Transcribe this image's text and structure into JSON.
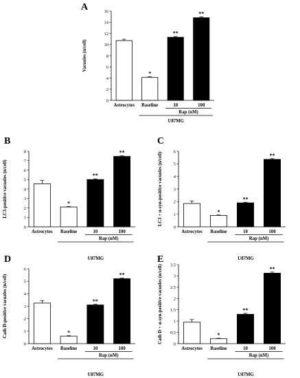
{
  "chart_data": [
    {
      "panel": "A",
      "type": "bar",
      "ylabel": "Vacuoles (n/cell)",
      "ylim": [
        0,
        16
      ],
      "yticks": [
        0,
        2,
        4,
        6,
        8,
        10,
        12,
        14,
        16
      ],
      "categories": [
        "Astrocytes",
        "Baseline",
        "10",
        "100"
      ],
      "values": [
        10.7,
        4.1,
        11.3,
        14.8
      ],
      "errors": [
        0.25,
        0.12,
        0.15,
        0.15
      ],
      "fill": [
        "white",
        "white",
        "black",
        "black"
      ],
      "significance": [
        "",
        "*",
        "**",
        "**"
      ],
      "treatment_label": "Rap (nM)",
      "group_label": "U87MG"
    },
    {
      "panel": "B",
      "type": "bar",
      "ylabel": "LC3-positive vacuoles (n/cell)",
      "ylim": [
        0,
        8
      ],
      "yticks": [
        0,
        1,
        2,
        3,
        4,
        5,
        6,
        7,
        8
      ],
      "categories": [
        "Astrocytes",
        "Baseline",
        "10",
        "100"
      ],
      "values": [
        4.55,
        2.1,
        5.0,
        7.45
      ],
      "errors": [
        0.35,
        0.06,
        0.08,
        0.06
      ],
      "fill": [
        "white",
        "white",
        "black",
        "black"
      ],
      "significance": [
        "",
        "*",
        "**",
        "**"
      ],
      "treatment_label": "Rap (nM)",
      "group_label": "U87MG"
    },
    {
      "panel": "C",
      "type": "bar",
      "ylabel": "LC3 + α-syn-positive vacuoles (n/cell)",
      "ylim": [
        0,
        6
      ],
      "yticks": [
        0,
        1,
        2,
        3,
        4,
        5,
        6
      ],
      "categories": [
        "Astrocytes",
        "Baseline",
        "10",
        "100"
      ],
      "values": [
        1.85,
        0.9,
        1.9,
        5.35
      ],
      "errors": [
        0.2,
        0.04,
        0.05,
        0.06
      ],
      "fill": [
        "white",
        "white",
        "black",
        "black"
      ],
      "significance": [
        "",
        "*",
        "**",
        "**"
      ],
      "treatment_label": "Rap (nM)",
      "group_label": "U87MG"
    },
    {
      "panel": "D",
      "type": "bar",
      "ylabel": "Cath D-positive vacuoles (n/cell)",
      "ylim": [
        0,
        6
      ],
      "yticks": [
        0,
        1,
        2,
        3,
        4,
        5,
        6
      ],
      "categories": [
        "Astrocytes",
        "Baseline",
        "10",
        "100"
      ],
      "values": [
        3.25,
        0.6,
        3.1,
        5.2
      ],
      "errors": [
        0.2,
        0.04,
        0.05,
        0.05
      ],
      "fill": [
        "white",
        "white",
        "black",
        "black"
      ],
      "significance": [
        "",
        "*",
        "**",
        "**"
      ],
      "treatment_label": "Rap (nM)",
      "group_label": "U87MG"
    },
    {
      "panel": "E",
      "type": "bar",
      "ylabel": "Cath D + α-syn-positive vacuoles (n/cell)",
      "ylim": [
        0,
        3.5
      ],
      "yticks": [
        0,
        0.5,
        1,
        1.5,
        2,
        2.5,
        3,
        3.5
      ],
      "categories": [
        "Astrocytes",
        "Baseline",
        "10",
        "100"
      ],
      "values": [
        0.95,
        0.22,
        1.3,
        3.12
      ],
      "errors": [
        0.12,
        0.02,
        0.04,
        0.05
      ],
      "fill": [
        "white",
        "white",
        "black",
        "black"
      ],
      "significance": [
        "",
        "*",
        "**",
        "**"
      ],
      "treatment_label": "Rap (nM)",
      "group_label": "U87MG"
    }
  ]
}
